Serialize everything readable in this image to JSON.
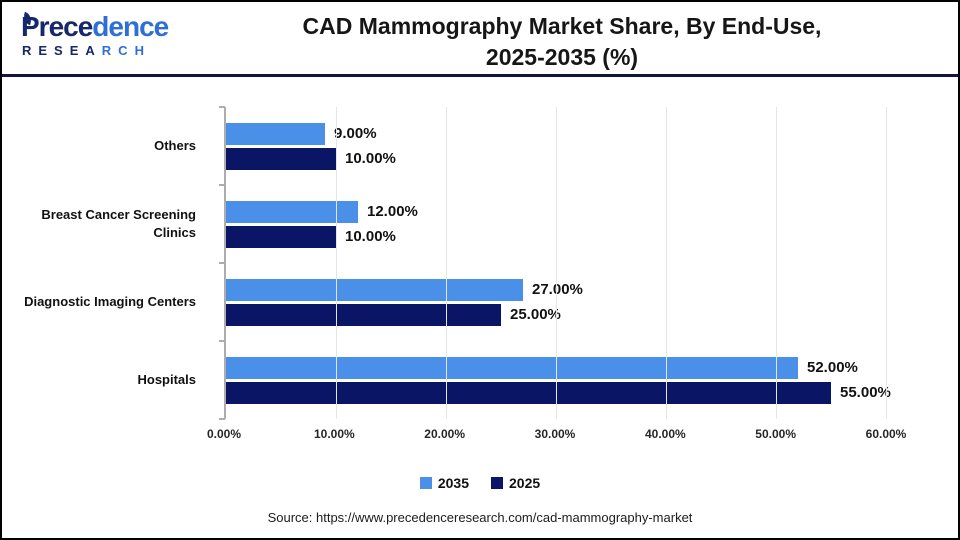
{
  "header": {
    "logo": {
      "part1": "Prece",
      "part2": "dence",
      "sub_part1": "RESEA",
      "sub_part2": "RCH"
    },
    "title_line1": "CAD Mammography Market Share, By End-Use,",
    "title_line2": "2025-2035 (%)"
  },
  "chart_data": {
    "type": "bar",
    "orientation": "horizontal",
    "title": "CAD Mammography Market Share, By End-Use, 2025-2035 (%)",
    "categories": [
      "Others",
      "Breast Cancer Screening Clinics",
      "Diagnostic Imaging Centers",
      "Hospitals"
    ],
    "series": [
      {
        "name": "2035",
        "color": "#4A90E8",
        "values": [
          9,
          12,
          27,
          52
        ]
      },
      {
        "name": "2025",
        "color": "#0B1566",
        "values": [
          10,
          10,
          25,
          55
        ]
      }
    ],
    "value_labels": [
      [
        "9.00%",
        "12.00%",
        "27.00%",
        "52.00%"
      ],
      [
        "10.00%",
        "10.00%",
        "25.00%",
        "55.00%"
      ]
    ],
    "x_ticks": [
      "0.00%",
      "10.00%",
      "20.00%",
      "30.00%",
      "40.00%",
      "50.00%",
      "60.00%"
    ],
    "xlim": [
      0,
      60
    ],
    "grid": true,
    "legend_position": "bottom"
  },
  "footer": {
    "source": "Source: https://www.precedenceresearch.com/cad-mammography-market"
  },
  "colors": {
    "series_2035": "#4A90E8",
    "series_2025": "#0B1566",
    "header_divider": "#12163A",
    "axis_line": "#ADADAD",
    "gridline": "#E5E5E5",
    "logo_navy": "#17276B",
    "logo_blue": "#2E6FD6"
  }
}
